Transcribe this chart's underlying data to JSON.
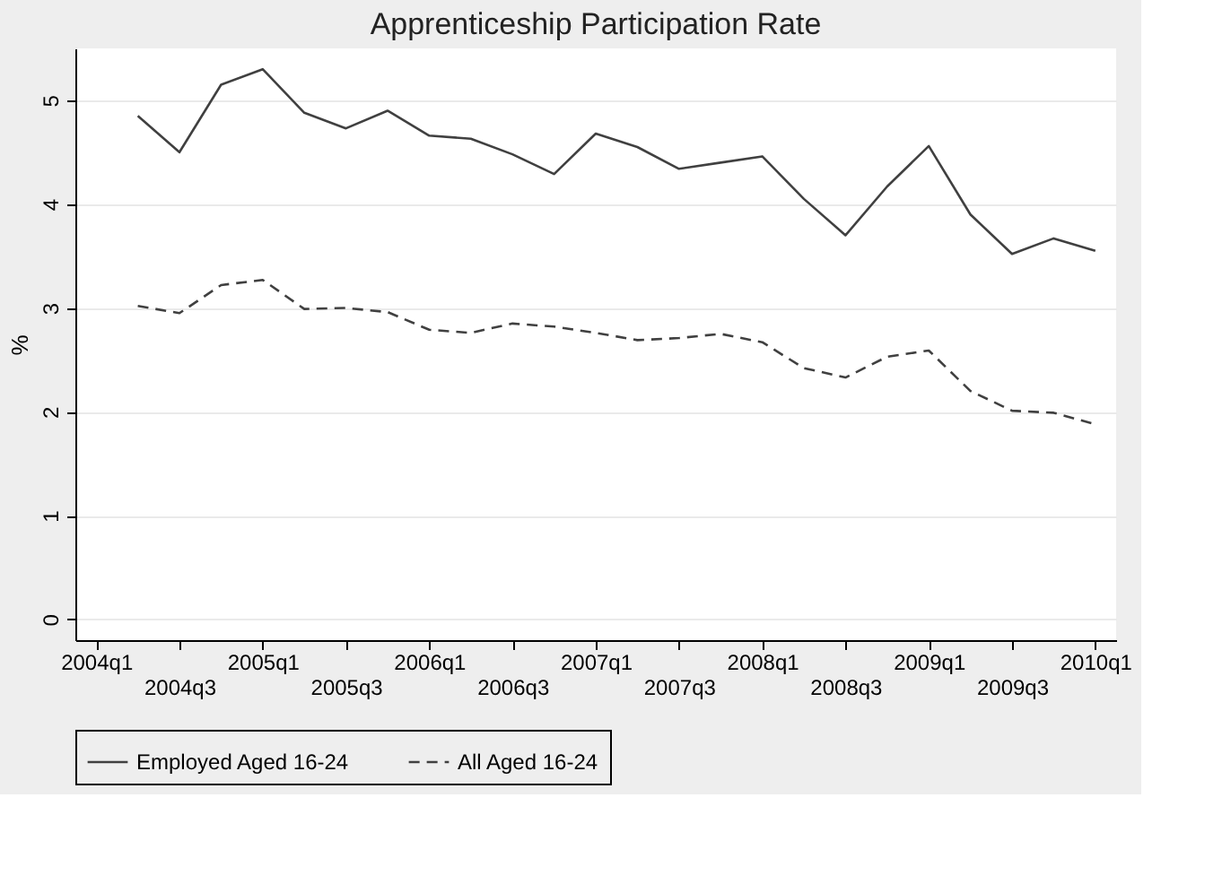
{
  "chart_data": {
    "type": "line",
    "title": "Apprenticeship Participation Rate",
    "ylabel": "%",
    "categories": [
      "2004q1",
      null,
      "2004q3",
      null,
      "2005q1",
      null,
      "2005q3",
      null,
      "2006q1",
      null,
      "2006q3",
      null,
      "2007q1",
      null,
      "2007q3",
      null,
      "2008q1",
      null,
      "2008q3",
      null,
      "2009q1",
      null,
      "2009q3",
      null,
      "2010q1"
    ],
    "ylim": [
      -0.2,
      5.5
    ],
    "yticks": [
      0,
      1,
      2,
      3,
      4,
      5
    ],
    "series": [
      {
        "name": "Employed Aged 16-24",
        "color": "#404040",
        "line_style": "solid",
        "values": [
          null,
          4.85,
          4.5,
          5.15,
          5.3,
          4.88,
          4.73,
          4.9,
          4.66,
          4.63,
          4.48,
          4.29,
          4.68,
          4.55,
          4.34,
          4.4,
          4.46,
          4.05,
          3.7,
          4.17,
          4.56,
          3.9,
          3.52,
          3.67,
          3.55
        ]
      },
      {
        "name": "All Aged 16-24",
        "color": "#404040",
        "line_style": "dashed",
        "values": [
          null,
          3.02,
          2.95,
          3.22,
          3.27,
          2.99,
          3.0,
          2.96,
          2.79,
          2.76,
          2.85,
          2.82,
          2.76,
          2.69,
          2.71,
          2.75,
          2.67,
          2.42,
          2.33,
          2.53,
          2.59,
          2.2,
          2.01,
          1.99,
          1.88
        ]
      }
    ],
    "grid": "y",
    "legend": "bottom",
    "marker": "none"
  }
}
